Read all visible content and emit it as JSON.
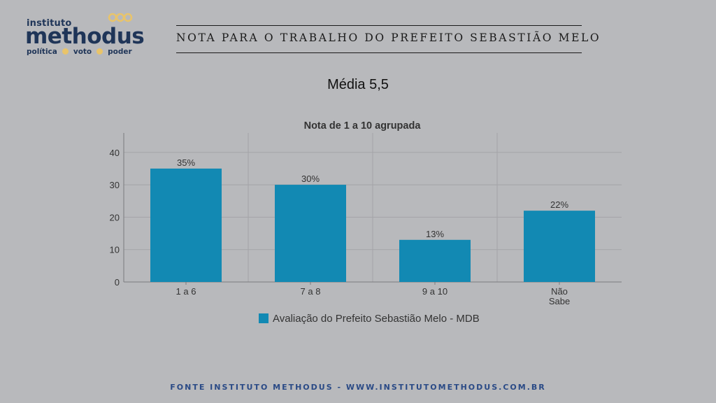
{
  "logo": {
    "small_text": "instituto",
    "main_text": "methodus",
    "tagline": [
      "política",
      "voto",
      "poder"
    ],
    "accent_color": "#e9c46a",
    "text_color": "#1f3558"
  },
  "header": {
    "title": "NOTA PARA O TRABALHO DO PREFEITO SEBASTIÃO MELO"
  },
  "subtitle": "Média 5,5",
  "chart_data": {
    "type": "bar",
    "title": "Nota de 1 a 10 agrupada",
    "categories": [
      "1 a 6",
      "7 a 8",
      "9 a 10",
      "Não Sabe"
    ],
    "series": [
      {
        "name": "Avaliação do Prefeito Sebastião Melo - MDB",
        "values": [
          35,
          30,
          13,
          22
        ],
        "labels": [
          "35%",
          "30%",
          "13%",
          "22%"
        ],
        "color": "#1289b3"
      }
    ],
    "yticks": [
      0,
      10,
      20,
      30,
      40
    ],
    "ylim": [
      0,
      46
    ],
    "grid": true,
    "legend_position": "bottom"
  },
  "footer": "FONTE INSTITUTO METHODUS - WWW.INSTITUTOMETHODUS.COM.BR"
}
